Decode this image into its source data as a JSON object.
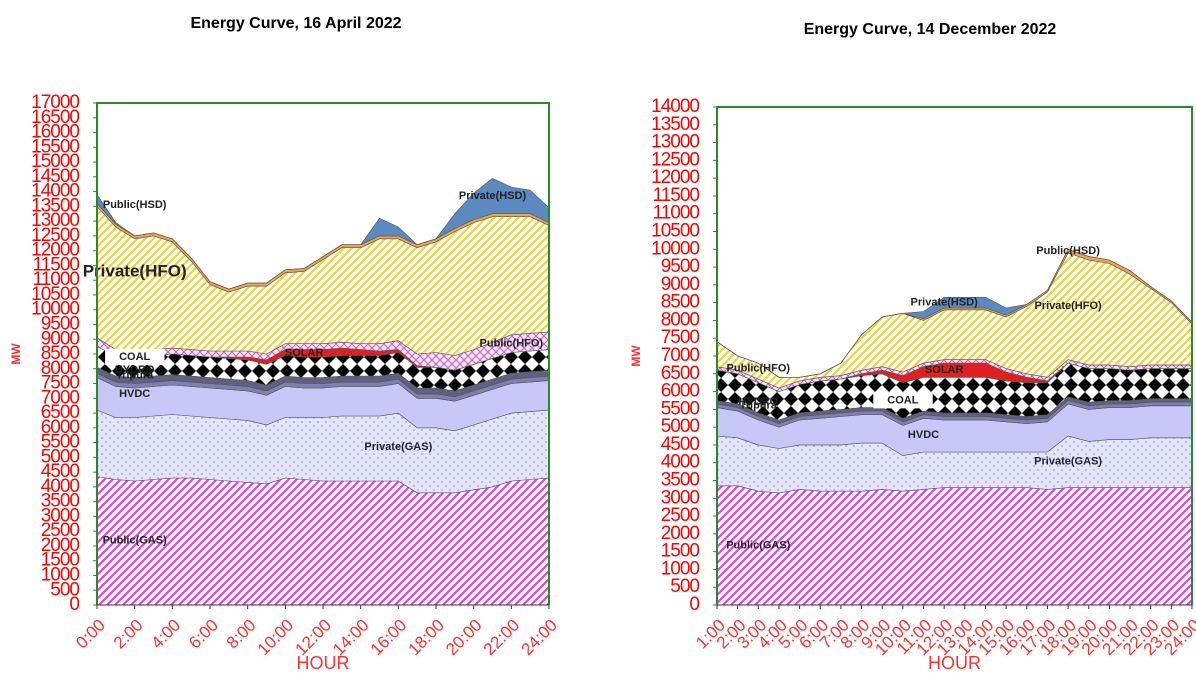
{
  "chart_data": [
    {
      "type": "area",
      "stacked": true,
      "title": "Energy Curve, 16 April 2022",
      "y_label": "MW",
      "x_label": "HOUR",
      "x": [
        0,
        1,
        2,
        3,
        4,
        5,
        6,
        7,
        8,
        9,
        10,
        11,
        12,
        13,
        14,
        15,
        16,
        17,
        18,
        19,
        20,
        21,
        22,
        23,
        24
      ],
      "xlim": [
        0,
        24
      ],
      "xticks": [
        {
          "value": 0,
          "label": "0:00"
        },
        {
          "value": 2,
          "label": "2:00"
        },
        {
          "value": 4,
          "label": "4:00"
        },
        {
          "value": 6,
          "label": "6:00"
        },
        {
          "value": 8,
          "label": "8:00"
        },
        {
          "value": 10,
          "label": "10:00"
        },
        {
          "value": 12,
          "label": "12:00"
        },
        {
          "value": 14,
          "label": "14:00"
        },
        {
          "value": 16,
          "label": "16:00"
        },
        {
          "value": 18,
          "label": "18:00"
        },
        {
          "value": 20,
          "label": "20:00"
        },
        {
          "value": 22,
          "label": "22:00"
        },
        {
          "value": 24,
          "label": "24:00"
        }
      ],
      "ylim": [
        0,
        17000
      ],
      "yticks": [
        0,
        500,
        1000,
        1500,
        2000,
        2500,
        3000,
        3500,
        4000,
        4500,
        5000,
        5500,
        6000,
        6500,
        7000,
        7500,
        8000,
        8500,
        9000,
        9500,
        10000,
        10500,
        11000,
        11500,
        12000,
        12500,
        13000,
        13500,
        14000,
        14500,
        15000,
        15500,
        16000,
        16500,
        17000
      ],
      "series": [
        {
          "name": "Public(GAS)",
          "color": "#e040e0",
          "values": [
            4350,
            4250,
            4200,
            4250,
            4300,
            4300,
            4250,
            4200,
            4150,
            4100,
            4300,
            4250,
            4200,
            4200,
            4200,
            4200,
            4200,
            3800,
            3800,
            3800,
            3900,
            4000,
            4200,
            4250,
            4300
          ]
        },
        {
          "name": "Private(GAS)",
          "color": "#9a9ae8",
          "values": [
            2250,
            2100,
            2150,
            2150,
            2150,
            2100,
            2100,
            2100,
            2100,
            2000,
            2050,
            2100,
            2150,
            2200,
            2200,
            2200,
            2300,
            2200,
            2200,
            2100,
            2200,
            2300,
            2300,
            2300,
            2300
          ]
        },
        {
          "name": "HVDC",
          "color": "#c8c8f8",
          "values": [
            1100,
            1050,
            1000,
            1000,
            1000,
            1000,
            1000,
            1000,
            1000,
            1000,
            1050,
            1000,
            1000,
            1000,
            1000,
            1000,
            1000,
            1000,
            1000,
            1000,
            1000,
            1000,
            1000,
            1000,
            1000
          ]
        },
        {
          "name": "Tripura",
          "color": "#8080b0",
          "values": [
            150,
            150,
            150,
            150,
            150,
            150,
            150,
            150,
            150,
            150,
            150,
            150,
            150,
            150,
            150,
            150,
            150,
            150,
            150,
            150,
            150,
            150,
            150,
            150,
            150
          ]
        },
        {
          "name": "HYDRO",
          "color": "#606080",
          "values": [
            200,
            200,
            200,
            200,
            200,
            200,
            200,
            200,
            200,
            200,
            200,
            200,
            200,
            200,
            200,
            200,
            200,
            200,
            200,
            200,
            200,
            200,
            200,
            200,
            200
          ]
        },
        {
          "name": "COAL",
          "color": "#000000",
          "values": [
            700,
            700,
            700,
            700,
            700,
            700,
            700,
            700,
            700,
            700,
            700,
            700,
            700,
            700,
            700,
            700,
            700,
            700,
            700,
            700,
            700,
            700,
            700,
            700,
            700
          ]
        },
        {
          "name": "SOLAR",
          "color": "#e02020",
          "values": [
            0,
            0,
            0,
            0,
            0,
            0,
            0,
            50,
            100,
            150,
            200,
            250,
            250,
            250,
            200,
            150,
            100,
            50,
            0,
            0,
            0,
            0,
            0,
            0,
            0
          ]
        },
        {
          "name": "Public(HFO)",
          "color": "#c060c0",
          "values": [
            300,
            200,
            200,
            200,
            200,
            200,
            200,
            200,
            200,
            200,
            200,
            200,
            200,
            200,
            200,
            250,
            300,
            400,
            500,
            500,
            500,
            550,
            600,
            600,
            600
          ]
        },
        {
          "name": "Private(HFO)",
          "color": "#f0d040",
          "values": [
            4450,
            4150,
            3800,
            3850,
            3600,
            3000,
            2250,
            2000,
            2200,
            2300,
            2400,
            2450,
            2850,
            3200,
            3250,
            3550,
            3450,
            3600,
            3750,
            4200,
            4300,
            4250,
            4000,
            3950,
            3600
          ]
        },
        {
          "name": "Public(HSD)",
          "color": "#f0a050",
          "values": [
            100,
            100,
            100,
            100,
            100,
            100,
            100,
            100,
            100,
            100,
            100,
            100,
            100,
            100,
            100,
            100,
            100,
            100,
            100,
            100,
            100,
            100,
            100,
            100,
            100
          ]
        },
        {
          "name": "Private(HSD)",
          "color": "#5a8ac0",
          "values": [
            300,
            50,
            0,
            0,
            0,
            0,
            0,
            0,
            0,
            0,
            0,
            0,
            0,
            0,
            0,
            600,
            300,
            0,
            0,
            500,
            900,
            1200,
            900,
            800,
            500
          ]
        }
      ]
    },
    {
      "type": "area",
      "stacked": true,
      "title": "Energy Curve, 14 December 2022",
      "y_label": "MW",
      "x_label": "HOUR",
      "x": [
        1,
        2,
        3,
        4,
        5,
        6,
        7,
        8,
        9,
        10,
        11,
        12,
        13,
        14,
        15,
        16,
        17,
        18,
        19,
        20,
        21,
        22,
        23,
        24
      ],
      "xlim": [
        1,
        24
      ],
      "xticks": [
        {
          "value": 1,
          "label": "1:00"
        },
        {
          "value": 2,
          "label": "2:00"
        },
        {
          "value": 3,
          "label": "3:00"
        },
        {
          "value": 4,
          "label": "4:00"
        },
        {
          "value": 5,
          "label": "5:00"
        },
        {
          "value": 6,
          "label": "6:00"
        },
        {
          "value": 7,
          "label": "7:00"
        },
        {
          "value": 8,
          "label": "8:00"
        },
        {
          "value": 9,
          "label": "9:00"
        },
        {
          "value": 10,
          "label": "10:00"
        },
        {
          "value": 11,
          "label": "11:00"
        },
        {
          "value": 12,
          "label": "12:00"
        },
        {
          "value": 13,
          "label": "13:00"
        },
        {
          "value": 14,
          "label": "14:00"
        },
        {
          "value": 15,
          "label": "15:00"
        },
        {
          "value": 16,
          "label": "16:00"
        },
        {
          "value": 17,
          "label": "17:00"
        },
        {
          "value": 18,
          "label": "18:00"
        },
        {
          "value": 19,
          "label": "19:00"
        },
        {
          "value": 20,
          "label": "20:00"
        },
        {
          "value": 21,
          "label": "21:00"
        },
        {
          "value": 22,
          "label": "22:00"
        },
        {
          "value": 23,
          "label": "23:00"
        },
        {
          "value": 24,
          "label": "24:00"
        }
      ],
      "ylim": [
        0,
        14000
      ],
      "yticks": [
        0,
        500,
        1000,
        1500,
        2000,
        2500,
        3000,
        3500,
        4000,
        4500,
        5000,
        5500,
        6000,
        6500,
        7000,
        7500,
        8000,
        8500,
        9000,
        9500,
        10000,
        10500,
        11000,
        11500,
        12000,
        12500,
        13000,
        13500,
        14000
      ],
      "series": [
        {
          "name": "Public(GAS)",
          "color": "#e040e0",
          "values": [
            3350,
            3350,
            3200,
            3150,
            3250,
            3200,
            3200,
            3200,
            3250,
            3200,
            3250,
            3300,
            3300,
            3300,
            3300,
            3300,
            3250,
            3300,
            3300,
            3300,
            3300,
            3300,
            3300,
            3300
          ]
        },
        {
          "name": "Private(GAS)",
          "color": "#9a9ae8",
          "values": [
            1400,
            1350,
            1300,
            1250,
            1250,
            1300,
            1300,
            1350,
            1300,
            1000,
            1050,
            1000,
            1000,
            1000,
            1000,
            1000,
            1050,
            1450,
            1300,
            1350,
            1350,
            1400,
            1400,
            1400
          ]
        },
        {
          "name": "HVDC",
          "color": "#c8c8f8",
          "values": [
            800,
            750,
            700,
            600,
            700,
            750,
            800,
            800,
            800,
            850,
            950,
            900,
            900,
            900,
            850,
            800,
            850,
            900,
            900,
            900,
            900,
            900,
            900,
            900
          ]
        },
        {
          "name": "Tripura",
          "color": "#8080b0",
          "values": [
            100,
            100,
            100,
            100,
            100,
            100,
            100,
            100,
            100,
            100,
            100,
            100,
            100,
            100,
            100,
            100,
            100,
            100,
            100,
            100,
            100,
            100,
            100,
            100
          ]
        },
        {
          "name": "HYDRO",
          "color": "#606080",
          "values": [
            100,
            100,
            100,
            100,
            100,
            100,
            100,
            100,
            100,
            100,
            100,
            100,
            100,
            100,
            100,
            100,
            100,
            100,
            100,
            100,
            100,
            100,
            100,
            100
          ]
        },
        {
          "name": "COAL",
          "color": "#000000",
          "values": [
            850,
            850,
            850,
            800,
            800,
            850,
            850,
            900,
            950,
            1000,
            950,
            1000,
            1000,
            1000,
            950,
            950,
            900,
            950,
            950,
            900,
            850,
            850,
            850,
            850
          ]
        },
        {
          "name": "SOLAR",
          "color": "#e02020",
          "values": [
            0,
            0,
            0,
            0,
            0,
            0,
            0,
            50,
            100,
            200,
            300,
            400,
            400,
            400,
            250,
            150,
            50,
            0,
            0,
            0,
            0,
            0,
            0,
            0
          ]
        },
        {
          "name": "Public(HFO)",
          "color": "#c060c0",
          "values": [
            100,
            100,
            100,
            100,
            100,
            100,
            100,
            100,
            100,
            100,
            100,
            100,
            100,
            100,
            100,
            100,
            100,
            100,
            100,
            100,
            100,
            100,
            100,
            100
          ]
        },
        {
          "name": "Private(HFO)",
          "color": "#f0d040",
          "values": [
            700,
            400,
            450,
            300,
            100,
            100,
            350,
            1000,
            1400,
            1650,
            1200,
            1400,
            1400,
            1400,
            1450,
            1900,
            2400,
            3000,
            2950,
            2850,
            2600,
            2150,
            1750,
            1150
          ]
        },
        {
          "name": "Public(HSD)",
          "color": "#f0a050",
          "values": [
            0,
            0,
            0,
            0,
            0,
            0,
            0,
            0,
            0,
            0,
            50,
            50,
            50,
            50,
            50,
            50,
            50,
            100,
            100,
            100,
            100,
            50,
            50,
            50
          ]
        },
        {
          "name": "Private(HSD)",
          "color": "#5a8ac0",
          "values": [
            0,
            0,
            0,
            0,
            0,
            0,
            0,
            0,
            0,
            0,
            200,
            300,
            300,
            300,
            200,
            0,
            0,
            0,
            0,
            0,
            0,
            0,
            0,
            0
          ]
        }
      ]
    }
  ]
}
